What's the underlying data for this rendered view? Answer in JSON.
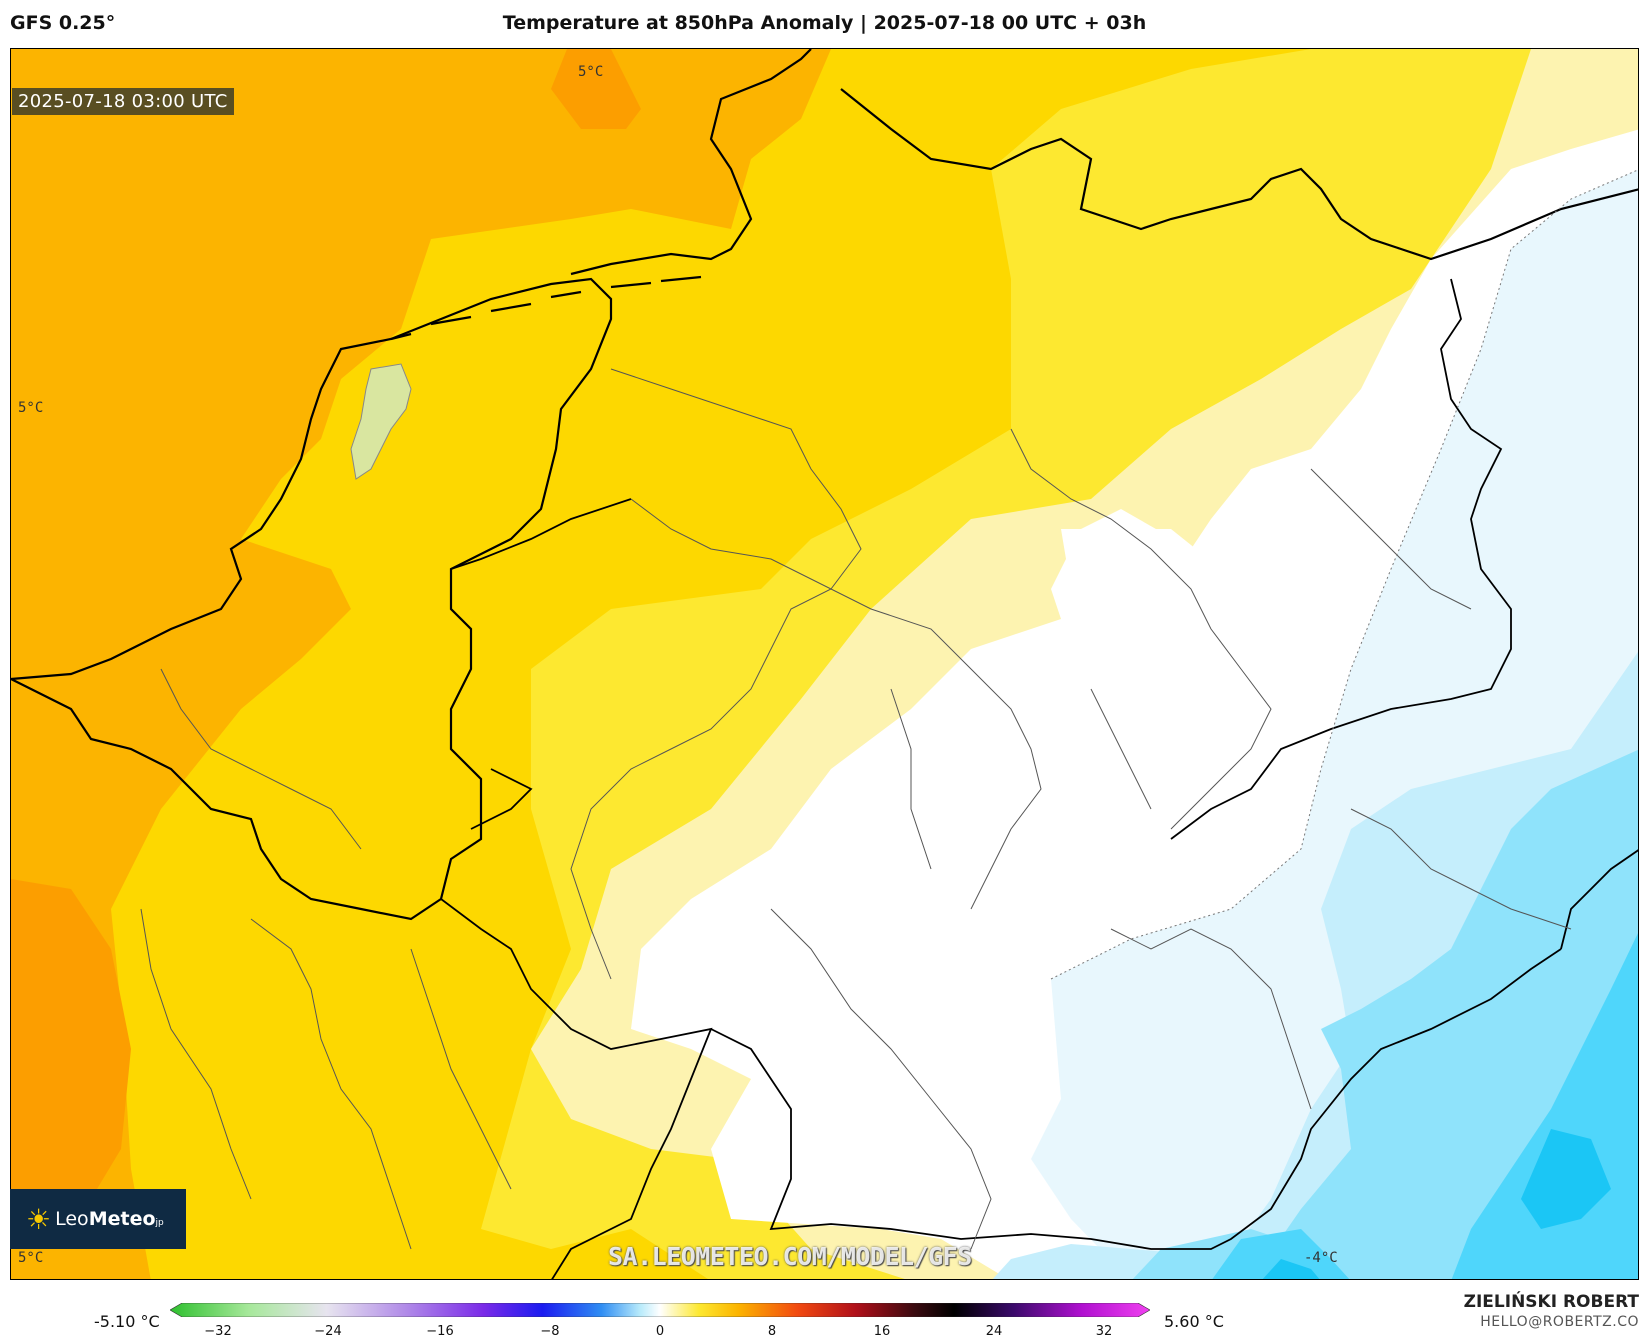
{
  "header": {
    "model": "GFS 0.25°",
    "title": "Temperature at 850hPa Anomaly | 2025-07-18 00 UTC + 03h"
  },
  "map": {
    "valid_time": "2025-07-18 03:00 UTC",
    "watermark": "SA.LEOMETEO.COM/MODEL/GFS",
    "logo": {
      "leo": "Leo",
      "meteo": "Meteo",
      "suffix": "jp"
    },
    "contour_labels": [
      "5°C",
      "5°C",
      "5°C",
      "5°C",
      "-4°C"
    ],
    "colors": {
      "anomaly_5": "#fcb400",
      "anomaly_6": "#fc9e00",
      "anomaly_3": "#fdd800",
      "anomaly_2": "#fde830",
      "anomaly_1": "#fdf3b0",
      "anomaly_0": "#ffffff",
      "anomaly_neg1": "#e8f7fd",
      "anomaly_neg2": "#c5eefc",
      "anomaly_neg3": "#8fe3fb",
      "anomaly_neg4": "#4fd6fb",
      "anomaly_neg5": "#1bc6f5"
    }
  },
  "colorbar": {
    "min_label": "-5.10 °C",
    "max_label": "5.60 °C",
    "ticks": [
      "−32",
      "−24",
      "−16",
      "−8",
      "0",
      "8",
      "16",
      "24",
      "32"
    ],
    "range": [
      -32,
      32
    ]
  },
  "credit": {
    "name": "ZIELIŃSKI ROBERT",
    "email": "HELLO@ROBERTZ.CO"
  }
}
